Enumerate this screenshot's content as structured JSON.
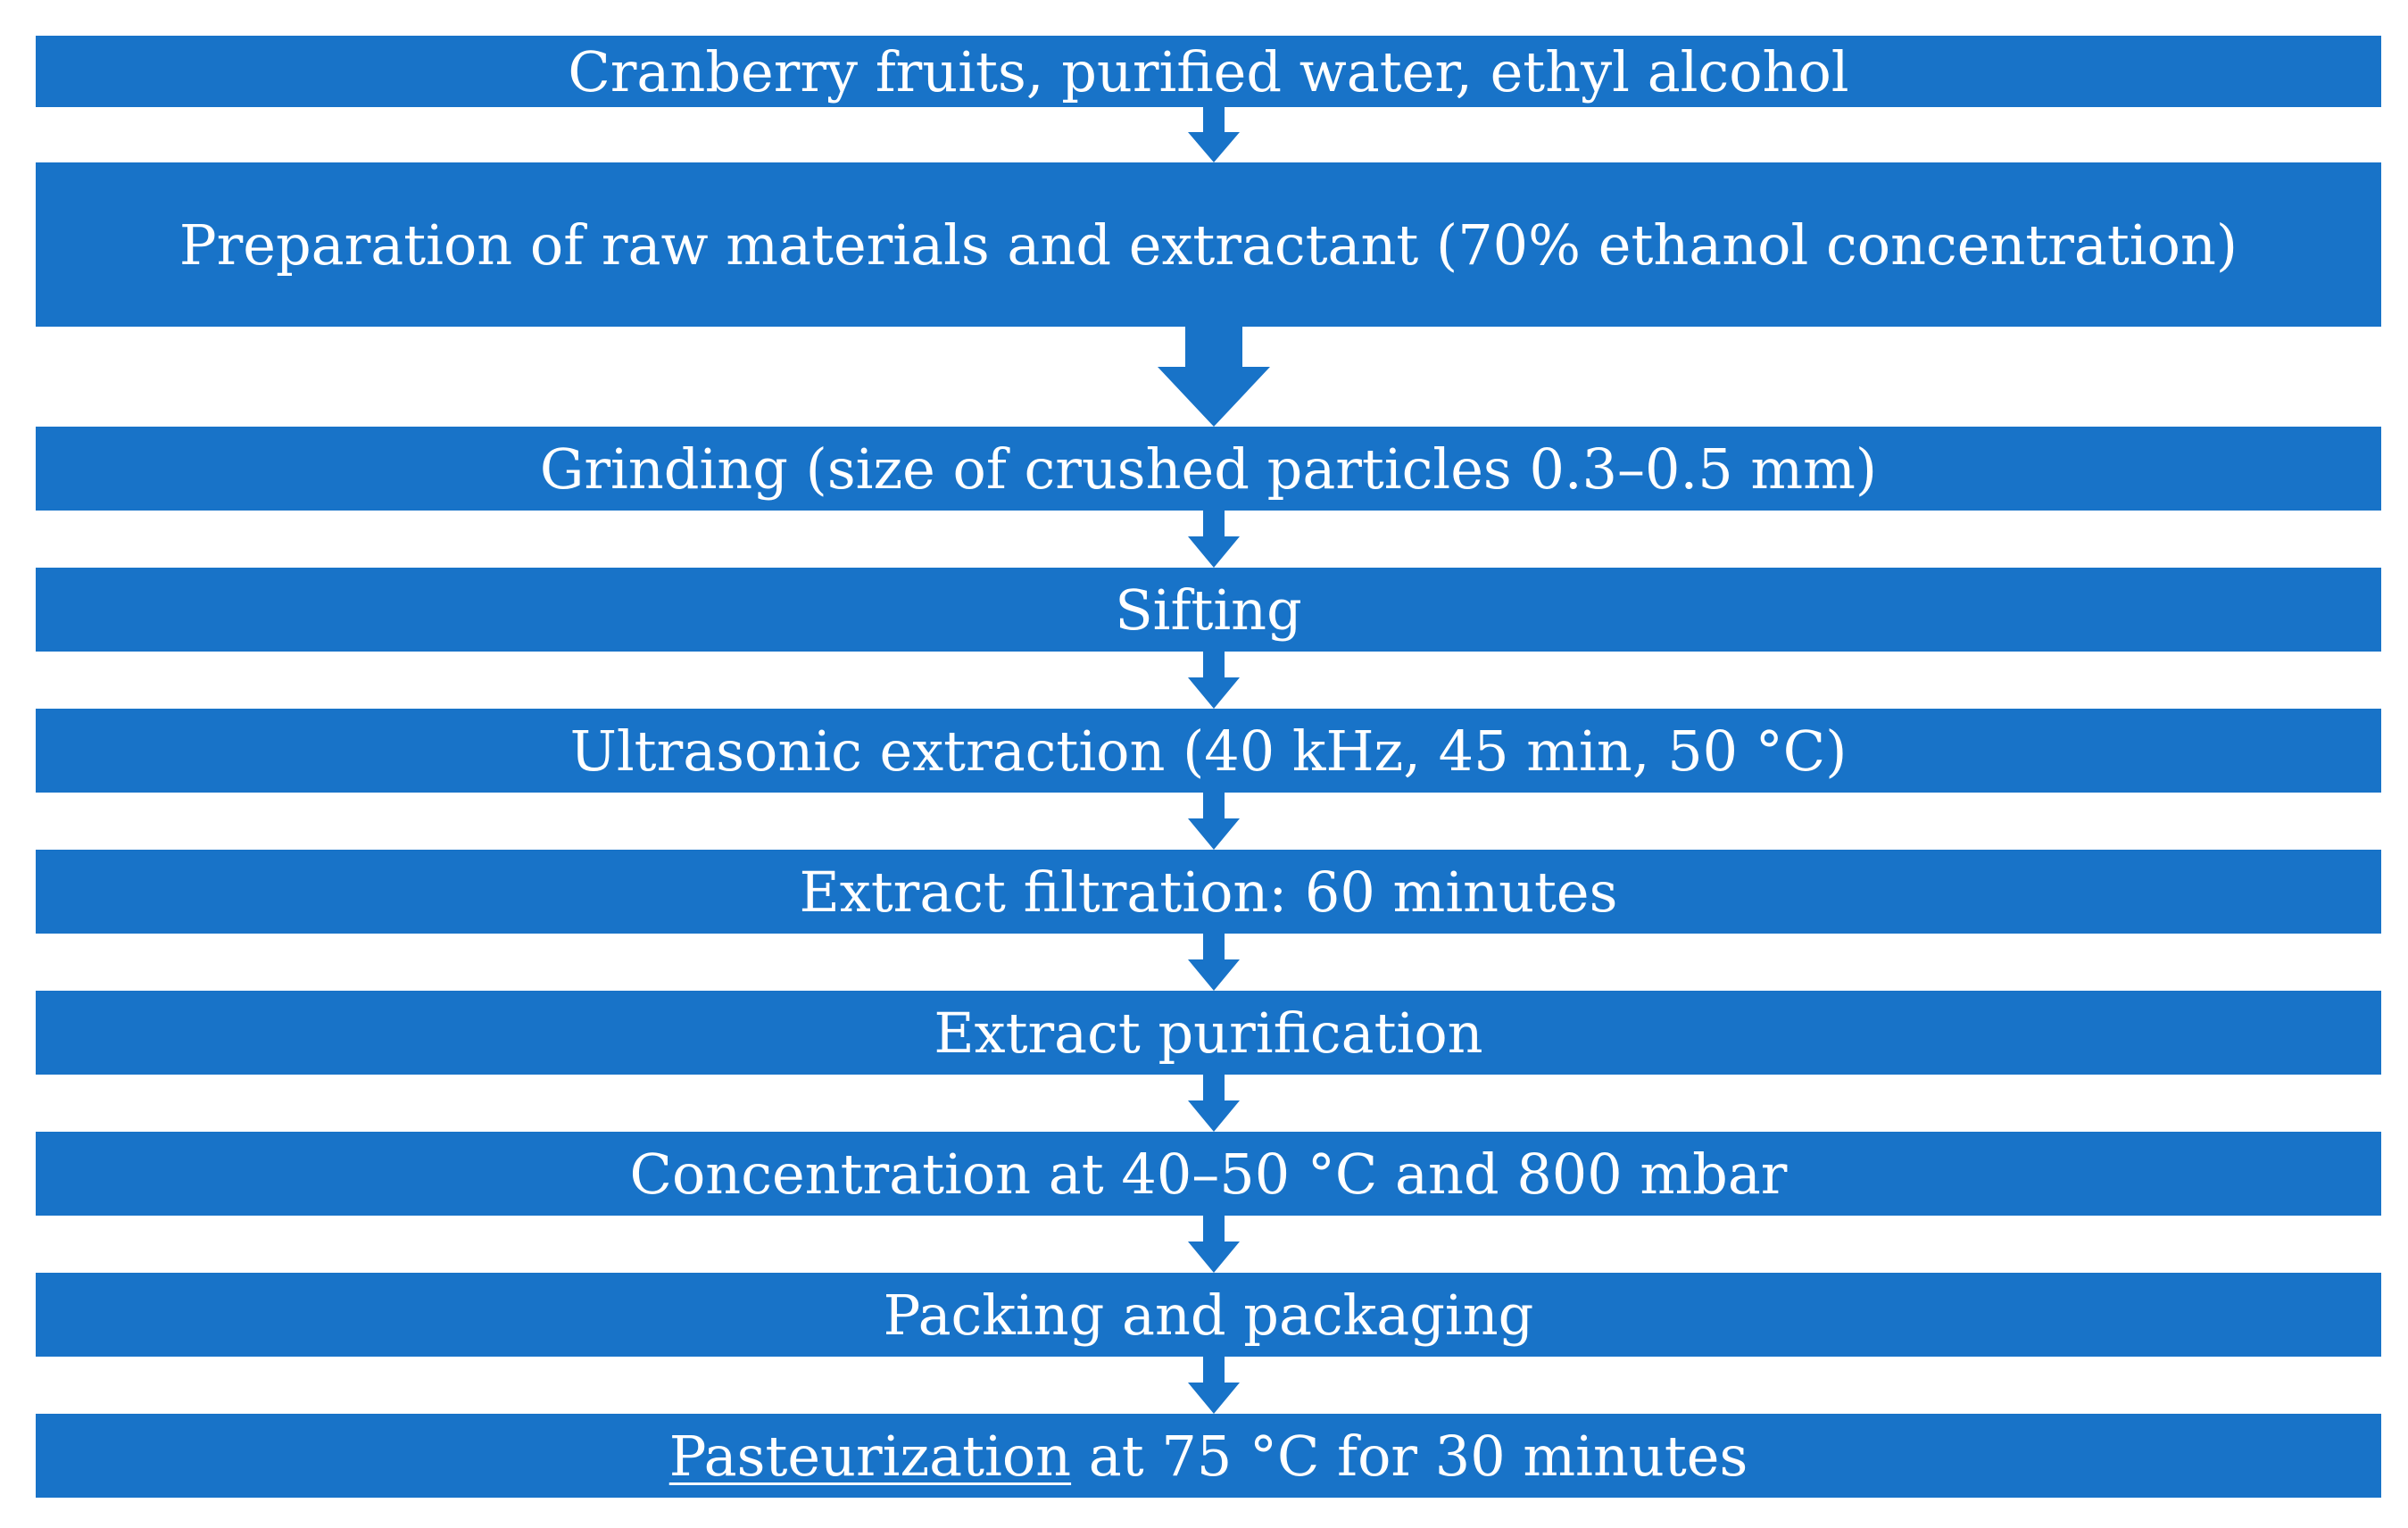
{
  "accent_color": "#1873c8",
  "steps": [
    {
      "text": "Cranberry fruits, purified water, ethyl alcohol"
    },
    {
      "text": "Preparation of raw materials and extractant (70% ethanol concentration)"
    },
    {
      "text": "Grinding (size of crushed particles 0.3–0.5 mm)"
    },
    {
      "text": "Sifting"
    },
    {
      "text": "Ultrasonic extraction (40 kHz, 45 min, 50 °C)"
    },
    {
      "text": "Extract filtration: 60 minutes"
    },
    {
      "text": "Extract purification"
    },
    {
      "text": "Concentration at 40–50 °C and 800 mbar"
    },
    {
      "text": "Packing and packaging"
    },
    {
      "underlined": "Pasteurization",
      "text": " at 75 °C for 30 minutes"
    }
  ]
}
